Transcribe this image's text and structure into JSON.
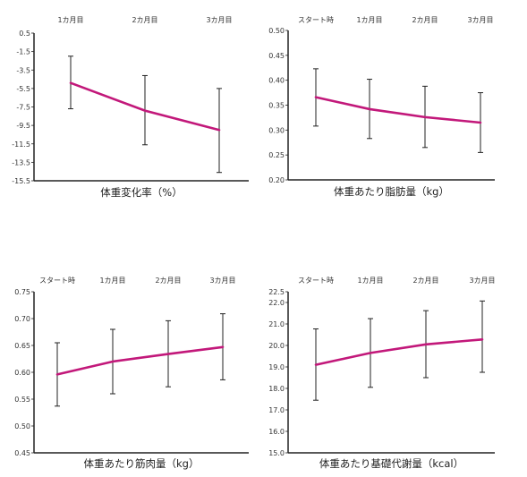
{
  "chart_data": [
    {
      "type": "line",
      "title": "体重変化率（%）",
      "categories": [
        "1カ月目",
        "2カ月目",
        "3カ月目"
      ],
      "ylim": [
        -15.5,
        0.5
      ],
      "yticks": [
        "0.5",
        "-1.5",
        "-3.5",
        "-5.5",
        "-7.5",
        "-9.5",
        "-11.5",
        "-13.5",
        "-15.5"
      ],
      "series": [
        {
          "values": [
            -4.9,
            -7.9,
            -10.0
          ],
          "error_low": [
            -7.7,
            -11.6,
            -14.6
          ],
          "error_high": [
            -2.0,
            -4.1,
            -5.5
          ]
        }
      ]
    },
    {
      "type": "line",
      "title": "体重あたり脂肪量（kg）",
      "categories": [
        "スタート時",
        "1カ月目",
        "2カ月目",
        "3カ月目"
      ],
      "ylim": [
        0.2,
        0.5
      ],
      "yticks": [
        "0.50",
        "0.45",
        "0.40",
        "0.35",
        "0.30",
        "0.25",
        "0.20"
      ],
      "series": [
        {
          "values": [
            0.366,
            0.342,
            0.326,
            0.315
          ],
          "error_low": [
            0.308,
            0.283,
            0.265,
            0.255
          ],
          "error_high": [
            0.423,
            0.402,
            0.388,
            0.375
          ]
        }
      ]
    },
    {
      "type": "line",
      "title": "体重あたり筋肉量（kg）",
      "categories": [
        "スタート時",
        "1カ月目",
        "2カ月目",
        "3カ月目"
      ],
      "ylim": [
        0.45,
        0.75
      ],
      "yticks": [
        "0.75",
        "0.70",
        "0.65",
        "0.60",
        "0.55",
        "0.50",
        "0.45"
      ],
      "series": [
        {
          "values": [
            0.596,
            0.62,
            0.634,
            0.647
          ],
          "error_low": [
            0.537,
            0.56,
            0.573,
            0.586
          ],
          "error_high": [
            0.655,
            0.68,
            0.696,
            0.709
          ]
        }
      ]
    },
    {
      "type": "line",
      "title": "体重あたり基礎代謝量（kcal）",
      "categories": [
        "スタート時",
        "1カ月目",
        "2カ月目",
        "3カ月目"
      ],
      "ylim": [
        15.0,
        22.5
      ],
      "yticks": [
        "22.5",
        "22.0",
        "21.0",
        "20.0",
        "19.0",
        "18.0",
        "17.0",
        "16.0",
        "15.0"
      ],
      "series": [
        {
          "values": [
            19.1,
            19.65,
            20.05,
            20.28
          ],
          "error_low": [
            17.45,
            18.05,
            18.5,
            18.75
          ],
          "error_high": [
            20.77,
            21.25,
            21.62,
            22.07
          ]
        }
      ]
    }
  ],
  "colors": {
    "line": "#c2187a",
    "axis": "#222222",
    "error_bar": "#222222"
  }
}
